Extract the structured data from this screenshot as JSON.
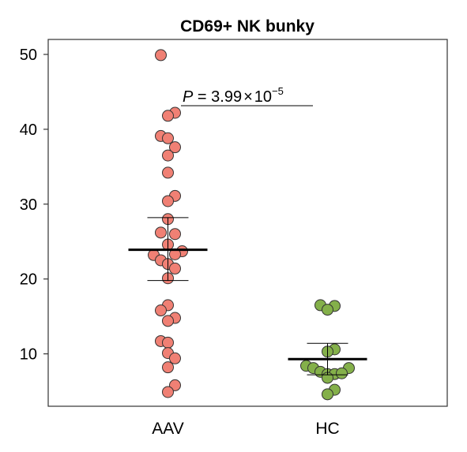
{
  "chart_data": {
    "type": "scatter",
    "title": "CD69+ NK bunky",
    "xlabel": "",
    "ylabel": "",
    "categories": [
      "AAV",
      "HC"
    ],
    "ylim": [
      3,
      52
    ],
    "yticks": [
      10,
      20,
      30,
      40,
      50
    ],
    "grid": false,
    "annotation": {
      "p_label": "P",
      "p_text": " = 3.99",
      "times": "×",
      "base": "10",
      "exponent": "−5"
    },
    "series": [
      {
        "name": "AAV",
        "color": "#f08074",
        "points": [
          {
            "dx": -1,
            "y": 49.9
          },
          {
            "dx": 1,
            "y": 42.2
          },
          {
            "dx": 0,
            "y": 41.8
          },
          {
            "dx": -1,
            "y": 39.1
          },
          {
            "dx": 0,
            "y": 38.8
          },
          {
            "dx": 1,
            "y": 37.6
          },
          {
            "dx": 0,
            "y": 36.5
          },
          {
            "dx": 0,
            "y": 34.2
          },
          {
            "dx": 1,
            "y": 31.1
          },
          {
            "dx": 0,
            "y": 30.4
          },
          {
            "dx": 0,
            "y": 28.0
          },
          {
            "dx": -1,
            "y": 26.2
          },
          {
            "dx": 1,
            "y": 26.0
          },
          {
            "dx": 0,
            "y": 24.6
          },
          {
            "dx": 2,
            "y": 23.7
          },
          {
            "dx": 1,
            "y": 23.3
          },
          {
            "dx": -2,
            "y": 23.2
          },
          {
            "dx": -1,
            "y": 22.5
          },
          {
            "dx": 0,
            "y": 22.0
          },
          {
            "dx": 1,
            "y": 21.4
          },
          {
            "dx": 0,
            "y": 20.1
          },
          {
            "dx": 0,
            "y": 16.5
          },
          {
            "dx": -1,
            "y": 15.8
          },
          {
            "dx": 1,
            "y": 14.8
          },
          {
            "dx": 0,
            "y": 14.4
          },
          {
            "dx": -1,
            "y": 11.7
          },
          {
            "dx": 0,
            "y": 11.5
          },
          {
            "dx": 0,
            "y": 10.1
          },
          {
            "dx": 1,
            "y": 9.4
          },
          {
            "dx": 0,
            "y": 8.2
          },
          {
            "dx": 1,
            "y": 5.8
          },
          {
            "dx": 0,
            "y": 4.9
          }
        ],
        "mean": 23.9,
        "err_low": 19.8,
        "err_high": 28.2
      },
      {
        "name": "HC",
        "color": "#84b04a",
        "points": [
          {
            "dx": -1,
            "y": 16.5
          },
          {
            "dx": 1,
            "y": 16.4
          },
          {
            "dx": 0,
            "y": 15.9
          },
          {
            "dx": 1,
            "y": 10.6
          },
          {
            "dx": 0,
            "y": 10.3
          },
          {
            "dx": -3,
            "y": 8.4
          },
          {
            "dx": -2,
            "y": 8.1
          },
          {
            "dx": 3,
            "y": 8.1
          },
          {
            "dx": -1,
            "y": 7.6
          },
          {
            "dx": 0,
            "y": 7.3
          },
          {
            "dx": 1,
            "y": 7.3
          },
          {
            "dx": 2,
            "y": 7.4
          },
          {
            "dx": 0,
            "y": 6.8
          },
          {
            "dx": 1,
            "y": 5.2
          },
          {
            "dx": 0,
            "y": 4.6
          }
        ],
        "mean": 9.3,
        "err_low": 7.2,
        "err_high": 11.4
      }
    ]
  }
}
